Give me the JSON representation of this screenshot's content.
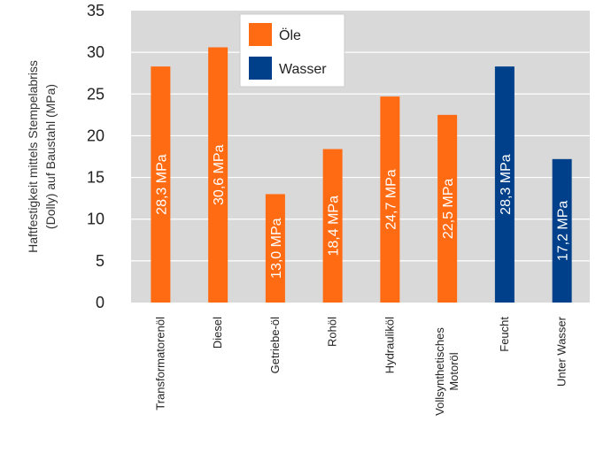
{
  "chart_data": {
    "type": "bar",
    "title": "",
    "xlabel": "",
    "ylabel": "Haftfestigkeit mittels Stempelabriss (Dolly) auf Baustahl (MPa)",
    "ylabel_lines": [
      "Haftfestigkeit mittels Stempelabriss",
      "(Dolly) auf Baustahl (MPa)"
    ],
    "ylim": [
      0,
      35
    ],
    "yticks": [
      0,
      5,
      10,
      15,
      20,
      25,
      30,
      35
    ],
    "grid": true,
    "legend_position": "top-center",
    "categories": [
      [
        "Transformatorenöl"
      ],
      [
        "Diesel"
      ],
      [
        "Getriebe-öl"
      ],
      [
        "Rohöl"
      ],
      [
        "Hydrauliköl"
      ],
      [
        "Vollsynthetisches",
        "Motoröl"
      ],
      [
        "Feucht"
      ],
      [
        "Unter Wasser"
      ]
    ],
    "values": [
      28.3,
      30.6,
      13.0,
      18.4,
      24.7,
      22.5,
      28.3,
      17.2
    ],
    "bar_labels": [
      "28,3 MPa",
      "30,6 MPa",
      "13,0 MPa",
      "18,4 MPa",
      "24,7 MPa",
      "22,5 MPa",
      "28,3 MPa",
      "17,2 MPa"
    ],
    "bar_series": [
      0,
      0,
      0,
      0,
      0,
      0,
      1,
      1
    ],
    "series": [
      {
        "name": "Öle",
        "color": "#FF6B13"
      },
      {
        "name": "Wasser",
        "color": "#00408A"
      }
    ],
    "plot_background": "#D9D9D9",
    "grid_color": "#FFFFFF"
  }
}
